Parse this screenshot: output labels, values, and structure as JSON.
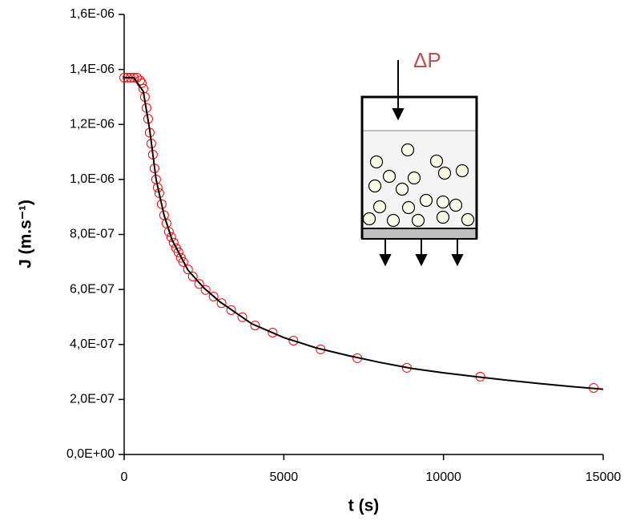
{
  "chart_data": {
    "type": "scatter",
    "x_label": "t (s)",
    "y_label": "J (m.s⁻¹)",
    "annotation": "ΔP",
    "xlim": [
      0,
      15000
    ],
    "xticks": [
      0,
      5000,
      10000,
      15000
    ],
    "ylim": [
      0,
      1.6e-06
    ],
    "yticks": [
      {
        "value": 0,
        "label": "0,0E+00"
      },
      {
        "value": 2e-07,
        "label": "2,0E-07"
      },
      {
        "value": 4e-07,
        "label": "4,0E-07"
      },
      {
        "value": 6e-07,
        "label": "6,0E-07"
      },
      {
        "value": 8e-07,
        "label": "8,0E-07"
      },
      {
        "value": 1e-06,
        "label": "1,0E-06"
      },
      {
        "value": 1.2e-06,
        "label": "1,2E-06"
      },
      {
        "value": 1.4e-06,
        "label": "1,4E-06"
      },
      {
        "value": 1.6e-06,
        "label": "1,6E-06"
      }
    ],
    "series": [
      {
        "kind": "points",
        "color": "#ff0000",
        "x": [
          0,
          100,
          200,
          300,
          400,
          500,
          550,
          600,
          650,
          700,
          750,
          800,
          850,
          900,
          950,
          1000,
          1050,
          1100,
          1175,
          1250,
          1325,
          1400,
          1475,
          1550,
          1625,
          1700,
          1775,
          1850,
          2000,
          2150,
          2350,
          2550,
          2800,
          3050,
          3350,
          3700,
          4100,
          4650,
          5300,
          6150,
          7300,
          8850,
          11150,
          14700
        ],
        "values": [
          1.37e-06,
          1.37e-06,
          1.37e-06,
          1.37e-06,
          1.37e-06,
          1.36e-06,
          1.35e-06,
          1.33e-06,
          1.3e-06,
          1.26e-06,
          1.22e-06,
          1.17e-06,
          1.13e-06,
          1.09e-06,
          1.04e-06,
          1e-06,
          9.7e-07,
          9.5e-07,
          9.1e-07,
          8.7e-07,
          8.4e-07,
          8.1e-07,
          7.9e-07,
          7.7e-07,
          7.5e-07,
          7.35e-07,
          7.15e-07,
          7e-07,
          6.73e-07,
          6.47e-07,
          6.2e-07,
          5.98e-07,
          5.74e-07,
          5.5e-07,
          5.25e-07,
          4.99e-07,
          4.69e-07,
          4.43e-07,
          4.14e-07,
          3.82e-07,
          3.5e-07,
          3.15e-07,
          2.83e-07,
          2.42e-07
        ]
      },
      {
        "kind": "line",
        "color": "#000000",
        "x": [
          0,
          300,
          600,
          800,
          1000,
          1250,
          1500,
          2000,
          2500,
          3000,
          4000,
          5000,
          6000,
          7000,
          8000,
          9000,
          10000,
          11000,
          12000,
          13000,
          14000,
          15000
        ],
        "values": [
          1.37e-06,
          1.37e-06,
          1.32e-06,
          1.18e-06,
          1e-06,
          8.7e-07,
          7.8e-07,
          6.7e-07,
          6.05e-07,
          5.55e-07,
          4.75e-07,
          4.25e-07,
          3.88e-07,
          3.6e-07,
          3.35e-07,
          3.13e-07,
          2.97e-07,
          2.83e-07,
          2.7e-07,
          2.58e-07,
          2.47e-07,
          2.37e-07
        ]
      }
    ]
  }
}
